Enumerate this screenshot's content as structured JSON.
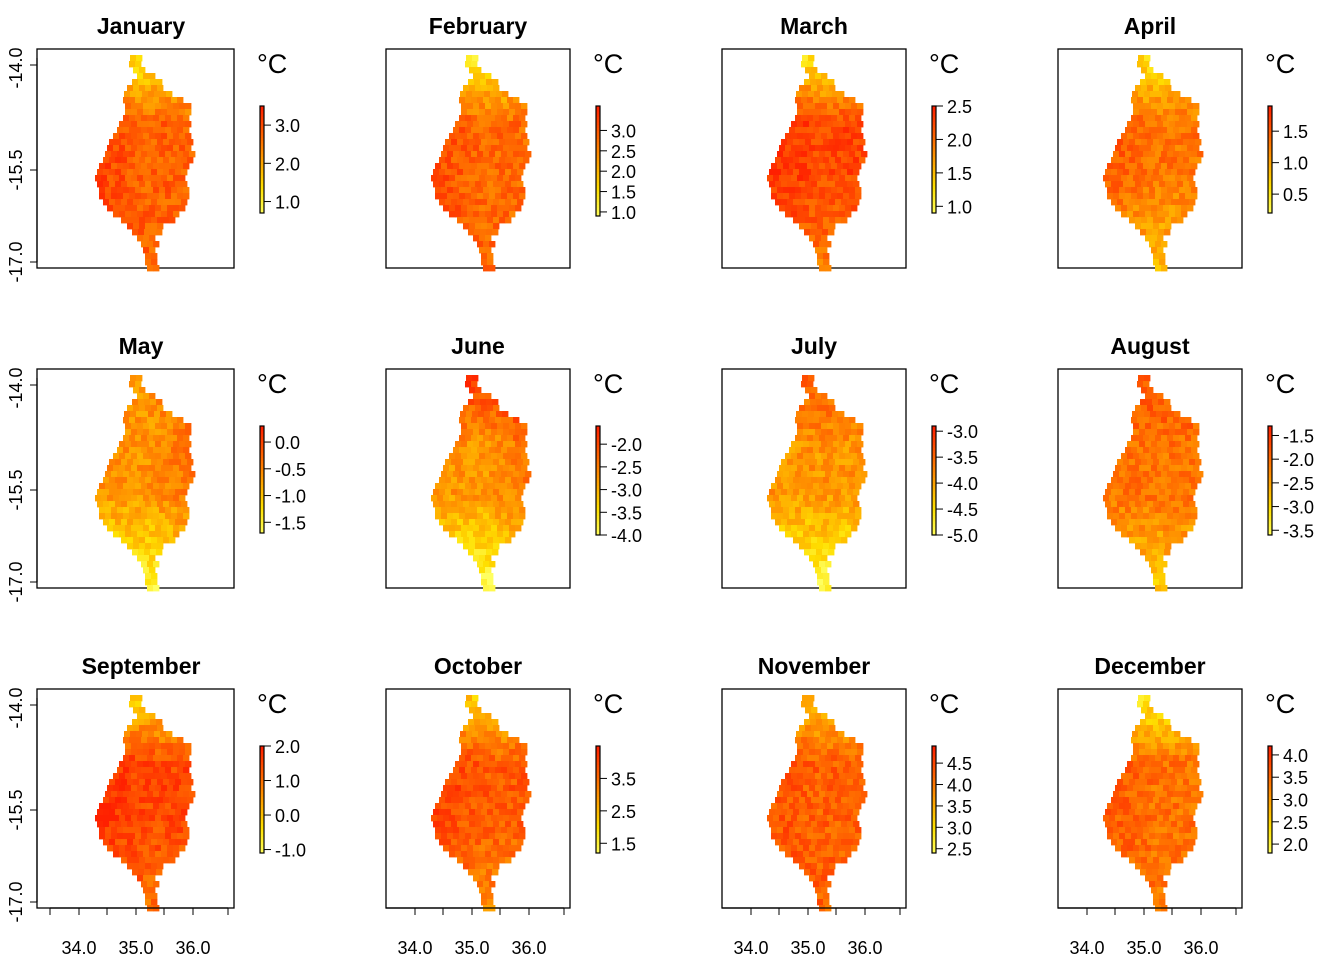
{
  "figure": {
    "unit_label": "°C",
    "x_axis_ticks": [
      "34.0",
      "35.0",
      "36.0"
    ],
    "y_axis_ticks": [
      "-14.0",
      "-15.5",
      "-17.0"
    ],
    "colormap": [
      "#FFFF60",
      "#FFE000",
      "#FFA000",
      "#FF6000",
      "#FF2000"
    ],
    "panels": [
      {
        "title": "January",
        "colorbar_ticks": [
          "3.0",
          "2.0",
          "1.0"
        ],
        "range": [
          0.7,
          3.5
        ]
      },
      {
        "title": "February",
        "colorbar_ticks": [
          "3.0",
          "2.5",
          "2.0",
          "1.5",
          "1.0"
        ],
        "range": [
          0.9,
          3.6
        ]
      },
      {
        "title": "March",
        "colorbar_ticks": [
          "2.5",
          "2.0",
          "1.5",
          "1.0"
        ],
        "range": [
          0.9,
          2.5
        ]
      },
      {
        "title": "April",
        "colorbar_ticks": [
          "1.5",
          "1.0",
          "0.5"
        ],
        "range": [
          0.2,
          1.9
        ]
      },
      {
        "title": "May",
        "colorbar_ticks": [
          "0.0",
          "-0.5",
          "-1.0",
          "-1.5"
        ],
        "range": [
          -1.7,
          0.3
        ]
      },
      {
        "title": "June",
        "colorbar_ticks": [
          "-2.0",
          "-2.5",
          "-3.0",
          "-3.5",
          "-4.0"
        ],
        "range": [
          -4.0,
          -1.6
        ]
      },
      {
        "title": "July",
        "colorbar_ticks": [
          "-3.0",
          "-3.5",
          "-4.0",
          "-4.5",
          "-5.0"
        ],
        "range": [
          -5.0,
          -2.9
        ]
      },
      {
        "title": "August",
        "colorbar_ticks": [
          "-1.5",
          "-2.0",
          "-2.5",
          "-3.0",
          "-3.5"
        ],
        "range": [
          -3.6,
          -1.3
        ]
      },
      {
        "title": "September",
        "colorbar_ticks": [
          "2.0",
          "1.0",
          "0.0",
          "-1.0"
        ],
        "range": [
          -1.1,
          2.0
        ]
      },
      {
        "title": "October",
        "colorbar_ticks": [
          "3.5",
          "2.5",
          "1.5"
        ],
        "range": [
          1.2,
          4.5
        ]
      },
      {
        "title": "November",
        "colorbar_ticks": [
          "4.5",
          "4.0",
          "3.5",
          "3.0",
          "2.5"
        ],
        "range": [
          2.4,
          4.9
        ]
      },
      {
        "title": "December",
        "colorbar_ticks": [
          "4.0",
          "3.5",
          "3.0",
          "2.5",
          "2.0"
        ],
        "range": [
          1.8,
          4.2
        ]
      }
    ]
  }
}
